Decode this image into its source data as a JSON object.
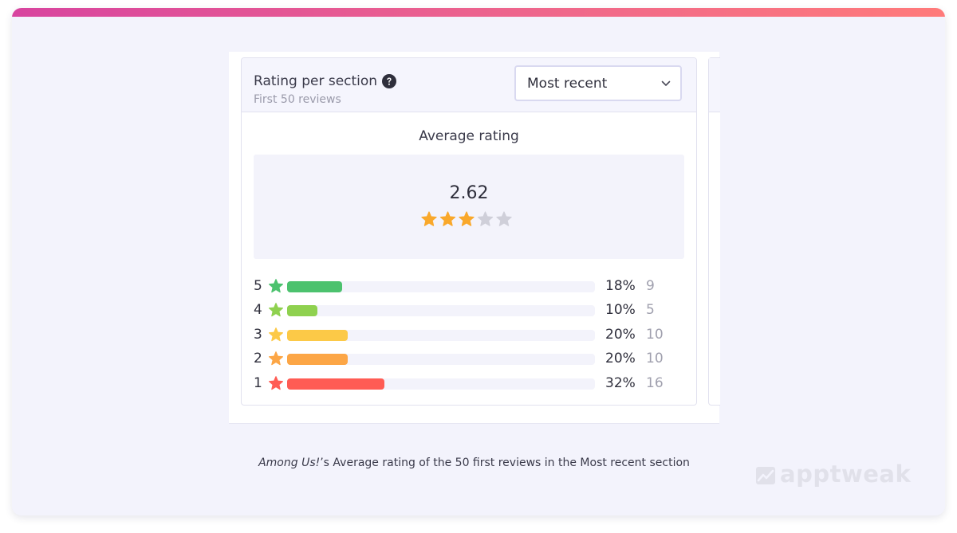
{
  "panel": {
    "title": "Rating per section",
    "subtitle": "First 50 reviews",
    "dropdown": {
      "selected": "Most recent"
    }
  },
  "average": {
    "label": "Average rating",
    "value": "2.62",
    "stars_filled": 3,
    "stars_total": 5
  },
  "distribution": [
    {
      "stars": "5",
      "percent": "18%",
      "count": "9",
      "fraction": 0.18,
      "color": "#4cc26e"
    },
    {
      "stars": "4",
      "percent": "10%",
      "count": "5",
      "fraction": 0.1,
      "color": "#8fd14f"
    },
    {
      "stars": "3",
      "percent": "20%",
      "count": "10",
      "fraction": 0.2,
      "color": "#fcc947"
    },
    {
      "stars": "2",
      "percent": "20%",
      "count": "10",
      "fraction": 0.2,
      "color": "#fca646"
    },
    {
      "stars": "1",
      "percent": "32%",
      "count": "16",
      "fraction": 0.32,
      "color": "#ff5c54"
    }
  ],
  "colors": {
    "star_filled": "#f9a82b",
    "star_empty": "#cfcfd9",
    "accent_gradient_start": "#d8449f",
    "accent_gradient_end": "#ff7a7a"
  },
  "caption": {
    "game": "Among Us!",
    "rest": "’s Average rating of the 50 first reviews in the Most recent section"
  },
  "brand": {
    "logo_text": "apptweak"
  }
}
